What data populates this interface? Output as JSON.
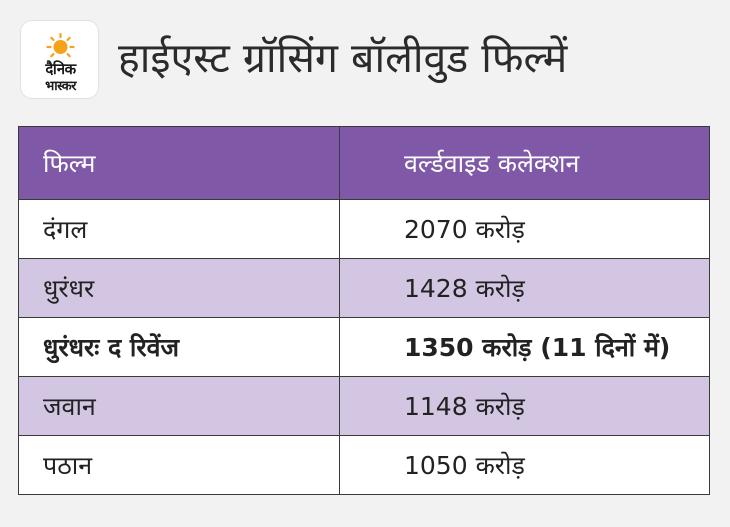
{
  "brand": {
    "logo_line1": "दैनिक",
    "logo_line2": "भास्कर",
    "sun_color": "#f7a21b"
  },
  "title": "हाईएस्ट ग्रॉसिंग बॉलीवुड फिल्में",
  "table": {
    "header_color": "#8058a8",
    "alt_row_color": "#d3c6e3",
    "columns": [
      "फिल्म",
      "वर्ल्डवाइड कलेक्शन"
    ],
    "rows": [
      {
        "film": "दंगल",
        "collection": "2070 करोड़"
      },
      {
        "film": "धुरंधर",
        "collection": "1428 करोड़"
      },
      {
        "film": "धुरंधरः द रिवेंज",
        "collection": "1350 करोड़ (11 दिनों में)"
      },
      {
        "film": "जवान",
        "collection": "1148 करोड़"
      },
      {
        "film": "पठान",
        "collection": "1050 करोड़"
      }
    ]
  }
}
